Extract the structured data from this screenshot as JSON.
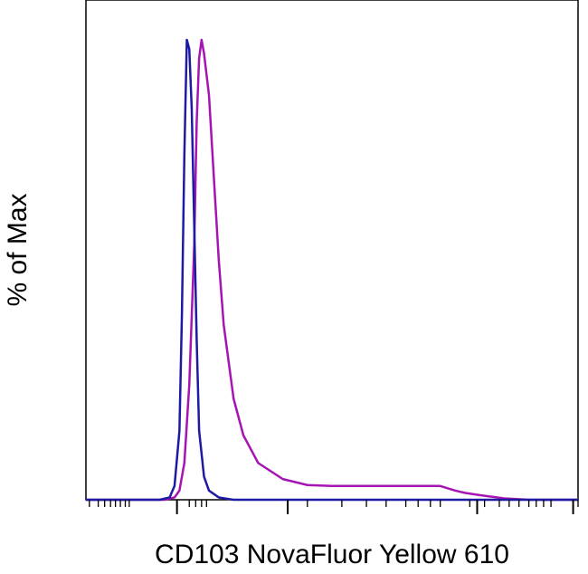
{
  "chart_data": {
    "type": "line",
    "title": "",
    "xlabel": "CD103 NovaFluor Yellow 610",
    "ylabel": "% of Max",
    "ylim": [
      0,
      100
    ],
    "x_scale": "log",
    "x_tick_labels_shown": false,
    "grid": false,
    "legend": "none",
    "series": [
      {
        "color": "#a614b4",
        "x": [
          0,
          8,
          12,
          16,
          18,
          19,
          20,
          21,
          22,
          22.5,
          23,
          23.5,
          24,
          25,
          26,
          27,
          28,
          30,
          32,
          35,
          40,
          45,
          50,
          55,
          60,
          65,
          70,
          72,
          75,
          77,
          80,
          85,
          90,
          100
        ],
        "y": [
          0,
          0,
          0,
          0,
          0.5,
          2,
          8,
          25,
          55,
          82,
          96,
          100,
          97,
          88,
          70,
          52,
          38,
          22,
          14,
          8,
          4.5,
          3.2,
          3,
          3,
          3,
          3,
          3,
          3,
          2,
          1.5,
          1,
          0.3,
          0,
          0
        ]
      },
      {
        "color": "#1d1aa3",
        "x": [
          0,
          10,
          15,
          17,
          18,
          19,
          19.5,
          20,
          20.5,
          21,
          21.5,
          22,
          22.5,
          23,
          24,
          25,
          27,
          30,
          100
        ],
        "y": [
          0,
          0,
          0,
          0.5,
          3,
          15,
          40,
          75,
          100,
          98,
          85,
          60,
          35,
          15,
          5,
          2,
          0.5,
          0,
          0
        ]
      }
    ]
  }
}
